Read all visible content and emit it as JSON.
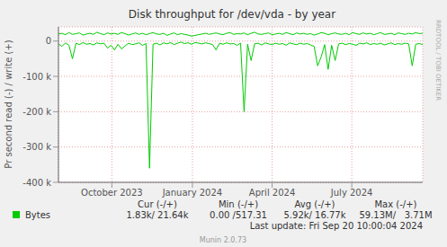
{
  "chart_data": {
    "type": "line",
    "title": "Disk throughput for /dev/vda - by year",
    "y_label": "Pr second read (-) / write (+)",
    "watermark": "RRDTOOL / TOBI OETIKER",
    "x": [
      0,
      4,
      8,
      12,
      16,
      20,
      24,
      28,
      32,
      36,
      40,
      44,
      48,
      52,
      56,
      60,
      64,
      68,
      72,
      76,
      80,
      84,
      88,
      92,
      96,
      100,
      104,
      108,
      112,
      116,
      120,
      124,
      128,
      132,
      136,
      140,
      144,
      148,
      152,
      156,
      160,
      164,
      168,
      172,
      176,
      180,
      184,
      188,
      192,
      196,
      200,
      204,
      208,
      212,
      216,
      220,
      224,
      228,
      232,
      236,
      240,
      244,
      248,
      252,
      256,
      260,
      264,
      268,
      272,
      276,
      280,
      284,
      288,
      292,
      296,
      300,
      304,
      308,
      312,
      316,
      320,
      324,
      328,
      332,
      336,
      340,
      344,
      348,
      352,
      356,
      360,
      364,
      368,
      372,
      376,
      380,
      384,
      388,
      392,
      396,
      400,
      404,
      408,
      412,
      416
    ],
    "series": [
      {
        "name": "Bytes",
        "color": "#00cc00",
        "write": [
          20000,
          22000,
          18000,
          24000,
          19000,
          21000,
          23000,
          17000,
          20000,
          22000,
          19000,
          25000,
          21000,
          18000,
          23000,
          20000,
          22000,
          19000,
          24000,
          21000,
          17000,
          20000,
          23000,
          19000,
          22000,
          18000,
          21000,
          24000,
          20000,
          19000,
          22000,
          16000,
          20000,
          23000,
          18000,
          21000,
          19000,
          17000,
          14000,
          16000,
          18000,
          20000,
          22000,
          19000,
          21000,
          23000,
          20000,
          18000,
          22000,
          24000,
          19000,
          21000,
          20000,
          23000,
          18000,
          22000,
          25000,
          20000,
          19000,
          21000,
          23000,
          18000,
          20000,
          22000,
          19000,
          24000,
          21000,
          18000,
          23000,
          20000,
          22000,
          19000,
          21000,
          17000,
          20000,
          24000,
          22000,
          18000,
          21000,
          23000,
          20000,
          19000,
          22000,
          18000,
          24000,
          21000,
          19000,
          23000,
          20000,
          22000,
          18000,
          21000,
          24000,
          19000,
          20000,
          22000,
          18000,
          23000,
          21000,
          19000,
          22000,
          20000,
          24000,
          21000,
          22000
        ],
        "read": [
          -8000,
          -15000,
          -5000,
          -12000,
          -50000,
          -6000,
          -10000,
          -4000,
          -9000,
          -7000,
          -11000,
          -5000,
          -8000,
          -6000,
          -20000,
          -12000,
          -25000,
          -9000,
          -22000,
          -14000,
          -6000,
          -10000,
          -8000,
          -5000,
          -12000,
          -7000,
          -360000,
          -9000,
          -6000,
          -11000,
          -5000,
          -8000,
          -4000,
          -10000,
          -6000,
          -3000,
          -7000,
          -5000,
          -9000,
          -4000,
          -6000,
          -8000,
          -5000,
          -7000,
          -10000,
          -25000,
          -6000,
          -9000,
          -5000,
          -8000,
          -7000,
          -12000,
          -6000,
          -200000,
          -9000,
          -55000,
          -8000,
          -6000,
          -11000,
          -5000,
          -8000,
          -10000,
          -6000,
          -9000,
          -7000,
          -12000,
          -5000,
          -8000,
          -10000,
          -6000,
          -9000,
          -7000,
          -11000,
          -15000,
          -70000,
          -45000,
          -10000,
          -80000,
          -12000,
          -55000,
          -8000,
          -6000,
          -10000,
          -7000,
          -9000,
          -12000,
          -6000,
          -8000,
          -5000,
          -10000,
          -7000,
          -9000,
          -6000,
          -11000,
          -8000,
          -5000,
          -10000,
          -7000,
          -9000,
          -6000,
          -8000,
          -70000,
          -9000,
          -7000,
          -10000
        ]
      }
    ],
    "xlim": [
      0,
      416
    ],
    "xticks": [
      {
        "value": 61,
        "label": "October 2023"
      },
      {
        "value": 153,
        "label": "January 2024"
      },
      {
        "value": 244,
        "label": "April 2024"
      },
      {
        "value": 335,
        "label": "July 2024"
      }
    ],
    "ylim": [
      -400000,
      40000
    ],
    "yticks": [
      {
        "value": -400000,
        "label": "-400 k"
      },
      {
        "value": -300000,
        "label": "-300 k"
      },
      {
        "value": -200000,
        "label": "-200 k"
      },
      {
        "value": -100000,
        "label": "-100 k"
      },
      0
    ],
    "grid": true,
    "legend": "bottom left",
    "stats": {
      "columns": [
        "Cur (-/+)",
        "Min (-/+)",
        "Avg (-/+)",
        "Max (-/+)"
      ],
      "values": [
        "1.83k/ 21.64k",
        "0.00 /517.31",
        "5.92k/ 16.77k",
        "59.13M/   3.71M"
      ]
    },
    "last_update": "Last update: Fri Sep 20 10:00:04 2024",
    "footer": "Munin 2.0.73"
  }
}
